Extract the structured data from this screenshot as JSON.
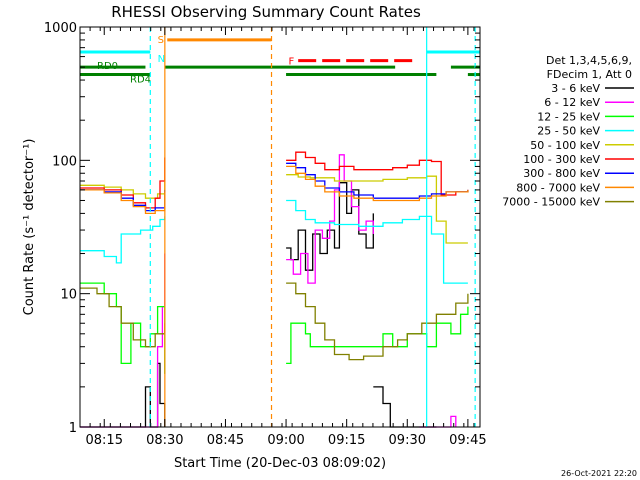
{
  "chart_data": {
    "type": "line",
    "title": "RHESSI Observing Summary Count Rates",
    "xlabel": "Start Time (20-Dec-03 08:09:02)",
    "ylabel": "Count Rate (s⁻¹ detector⁻¹)",
    "yscale": "log",
    "ylim": [
      1,
      1000
    ],
    "xlim": [
      8.15,
      9.8
    ],
    "x_ticks": [
      {
        "t": 8.25,
        "label": "08:15"
      },
      {
        "t": 8.5,
        "label": "08:30"
      },
      {
        "t": 8.75,
        "label": "08:45"
      },
      {
        "t": 9.0,
        "label": "09:00"
      },
      {
        "t": 9.25,
        "label": "09:15"
      },
      {
        "t": 9.5,
        "label": "09:30"
      },
      {
        "t": 9.75,
        "label": "09:45"
      }
    ],
    "y_ticks": [
      {
        "v": 1,
        "label": "1"
      },
      {
        "v": 10,
        "label": "10"
      },
      {
        "v": 100,
        "label": "100"
      },
      {
        "v": 1000,
        "label": "1000"
      }
    ],
    "legend_header": [
      "Det 1,3,4,5,6,9,",
      "FDecim 1, Att 0"
    ],
    "legend_position": "right",
    "timestamp": "26-Oct-2021 22:20",
    "series": [
      {
        "name": "3 - 6 keV",
        "color": "#000000",
        "segments": [
          [
            [
              8.15,
              1
            ],
            [
              8.4,
              1
            ],
            [
              8.42,
              2
            ],
            [
              8.44,
              1
            ],
            [
              8.47,
              3
            ],
            [
              8.48,
              1.5
            ],
            [
              8.5,
              1
            ]
          ],
          [
            [
              9.0,
              22
            ],
            [
              9.02,
              18
            ],
            [
              9.05,
              30
            ],
            [
              9.08,
              15
            ],
            [
              9.11,
              28
            ],
            [
              9.14,
              20
            ],
            [
              9.17,
              30
            ],
            [
              9.2,
              22
            ],
            [
              9.22,
              68
            ],
            [
              9.25,
              40
            ],
            [
              9.27,
              60
            ],
            [
              9.3,
              28
            ],
            [
              9.33,
              22
            ],
            [
              9.36,
              40
            ]
          ],
          [
            [
              9.36,
              2
            ],
            [
              9.4,
              1.5
            ],
            [
              9.43,
              1
            ],
            [
              9.5,
              1
            ],
            [
              9.62,
              1
            ]
          ]
        ]
      },
      {
        "name": "6 - 12 keV",
        "color": "#ff00ff",
        "segments": [
          [
            [
              8.15,
              1
            ],
            [
              8.44,
              1
            ],
            [
              8.47,
              4
            ],
            [
              8.49,
              8
            ],
            [
              8.5,
              20
            ]
          ],
          [
            [
              9.0,
              18
            ],
            [
              9.03,
              14
            ],
            [
              9.06,
              20
            ],
            [
              9.09,
              12
            ],
            [
              9.12,
              30
            ],
            [
              9.15,
              26
            ],
            [
              9.18,
              35
            ],
            [
              9.2,
              60
            ],
            [
              9.22,
              110
            ],
            [
              9.24,
              70
            ],
            [
              9.27,
              45
            ],
            [
              9.3,
              30
            ],
            [
              9.33,
              35
            ],
            [
              9.36,
              28
            ]
          ],
          [
            [
              9.55,
              1
            ],
            [
              9.68,
              1.2
            ],
            [
              9.7,
              1
            ]
          ]
        ]
      },
      {
        "name": "12 - 25 keV",
        "color": "#00ff00",
        "segments": [
          [
            [
              8.15,
              12
            ],
            [
              8.25,
              10
            ],
            [
              8.3,
              8
            ],
            [
              8.32,
              3
            ],
            [
              8.36,
              6
            ],
            [
              8.4,
              4
            ],
            [
              8.44,
              5
            ],
            [
              8.47,
              8
            ],
            [
              8.5,
              2.5
            ]
          ],
          [
            [
              9.0,
              3
            ],
            [
              9.02,
              6
            ],
            [
              9.08,
              5
            ],
            [
              9.1,
              4
            ],
            [
              9.3,
              4
            ],
            [
              9.4,
              5
            ],
            [
              9.44,
              4
            ],
            [
              9.5,
              5
            ],
            [
              9.58,
              4
            ],
            [
              9.62,
              6
            ],
            [
              9.68,
              5
            ],
            [
              9.72,
              7
            ],
            [
              9.75,
              8
            ]
          ]
        ]
      },
      {
        "name": "25 - 50 keV",
        "color": "#00ffff",
        "segments": [
          [
            [
              8.15,
              21
            ],
            [
              8.25,
              19
            ],
            [
              8.3,
              17
            ],
            [
              8.32,
              28
            ],
            [
              8.4,
              30
            ],
            [
              8.45,
              32
            ],
            [
              8.48,
              36
            ],
            [
              8.5,
              38
            ]
          ],
          [
            [
              9.0,
              50
            ],
            [
              9.04,
              42
            ],
            [
              9.08,
              36
            ],
            [
              9.12,
              34
            ],
            [
              9.2,
              33
            ],
            [
              9.3,
              32
            ],
            [
              9.4,
              34
            ],
            [
              9.48,
              36
            ],
            [
              9.55,
              38
            ],
            [
              9.6,
              28
            ],
            [
              9.65,
              12
            ],
            [
              9.75,
              12
            ]
          ]
        ]
      },
      {
        "name": "50 - 100 keV",
        "color": "#cccc00",
        "segments": [
          [
            [
              8.15,
              65
            ],
            [
              8.25,
              63
            ],
            [
              8.32,
              60
            ],
            [
              8.37,
              56
            ],
            [
              8.42,
              52
            ],
            [
              8.47,
              56
            ],
            [
              8.5,
              70
            ]
          ],
          [
            [
              9.0,
              78
            ],
            [
              9.05,
              75
            ],
            [
              9.1,
              74
            ],
            [
              9.2,
              70
            ],
            [
              9.3,
              70
            ],
            [
              9.4,
              72
            ],
            [
              9.5,
              74
            ],
            [
              9.58,
              76
            ],
            [
              9.62,
              35
            ],
            [
              9.66,
              24
            ],
            [
              9.75,
              24
            ]
          ]
        ]
      },
      {
        "name": "100 - 300 keV",
        "color": "#ff0000",
        "segments": [
          [
            [
              8.15,
              62
            ],
            [
              8.25,
              60
            ],
            [
              8.32,
              55
            ],
            [
              8.37,
              48
            ],
            [
              8.42,
              44
            ],
            [
              8.46,
              52
            ],
            [
              8.48,
              70
            ],
            [
              8.5,
              105
            ]
          ],
          [
            [
              9.0,
              100
            ],
            [
              9.04,
              115
            ],
            [
              9.08,
              105
            ],
            [
              9.12,
              95
            ],
            [
              9.16,
              85
            ],
            [
              9.22,
              90
            ],
            [
              9.28,
              85
            ],
            [
              9.36,
              85
            ],
            [
              9.44,
              88
            ],
            [
              9.5,
              92
            ],
            [
              9.55,
              100
            ],
            [
              9.6,
              98
            ],
            [
              9.64,
              55
            ],
            [
              9.7,
              58
            ],
            [
              9.75,
              60
            ]
          ]
        ]
      },
      {
        "name": "300 - 800 keV",
        "color": "#0000ff",
        "segments": [
          [
            [
              8.15,
              60
            ],
            [
              8.25,
              58
            ],
            [
              8.32,
              52
            ],
            [
              8.37,
              46
            ],
            [
              8.42,
              42
            ],
            [
              8.46,
              44
            ],
            [
              8.5,
              60
            ]
          ],
          [
            [
              9.0,
              95
            ],
            [
              9.04,
              88
            ],
            [
              9.08,
              78
            ],
            [
              9.12,
              70
            ],
            [
              9.16,
              62
            ],
            [
              9.22,
              58
            ],
            [
              9.28,
              55
            ],
            [
              9.36,
              52
            ],
            [
              9.44,
              52
            ],
            [
              9.5,
              52
            ],
            [
              9.55,
              54
            ],
            [
              9.6,
              56
            ],
            [
              9.66,
              58
            ],
            [
              9.75,
              60
            ]
          ]
        ]
      },
      {
        "name": "800 - 7000 keV",
        "color": "#ff8800",
        "segments": [
          [
            [
              8.15,
              60
            ],
            [
              8.25,
              57
            ],
            [
              8.32,
              50
            ],
            [
              8.37,
              45
            ],
            [
              8.42,
              40
            ],
            [
              8.46,
              42
            ],
            [
              8.5,
              58
            ]
          ],
          [
            [
              9.0,
              90
            ],
            [
              9.04,
              80
            ],
            [
              9.08,
              72
            ],
            [
              9.12,
              64
            ],
            [
              9.16,
              58
            ],
            [
              9.22,
              54
            ],
            [
              9.28,
              52
            ],
            [
              9.36,
              50
            ],
            [
              9.44,
              50
            ],
            [
              9.5,
              50
            ],
            [
              9.55,
              52
            ],
            [
              9.6,
              54
            ],
            [
              9.66,
              58
            ],
            [
              9.75,
              60
            ]
          ]
        ]
      },
      {
        "name": "7000 - 15000 keV",
        "color": "#808000",
        "segments": [
          [
            [
              8.15,
              11
            ],
            [
              8.22,
              10
            ],
            [
              8.27,
              8
            ],
            [
              8.32,
              6
            ],
            [
              8.37,
              4.5
            ],
            [
              8.42,
              4
            ],
            [
              8.46,
              5
            ],
            [
              8.5,
              6
            ]
          ],
          [
            [
              9.0,
              12
            ],
            [
              9.04,
              10
            ],
            [
              9.08,
              8
            ],
            [
              9.12,
              6
            ],
            [
              9.16,
              4.5
            ],
            [
              9.2,
              3.5
            ],
            [
              9.26,
              3.2
            ],
            [
              9.32,
              3.4
            ],
            [
              9.4,
              4
            ],
            [
              9.46,
              4.5
            ],
            [
              9.5,
              5
            ],
            [
              9.56,
              6
            ],
            [
              9.62,
              7
            ],
            [
              9.7,
              8.5
            ],
            [
              9.75,
              10
            ]
          ]
        ]
      }
    ],
    "flag_bars": [
      {
        "name": "SAA",
        "label": "S",
        "color": "#ff8800",
        "y": 800,
        "ranges": [
          [
            8.51,
            8.94
          ]
        ]
      },
      {
        "name": "Night",
        "label": "N",
        "color": "#00ffff",
        "y": 650,
        "ranges": [
          [
            8.15,
            8.44
          ],
          [
            9.58,
            9.8
          ]
        ]
      },
      {
        "name": "Flare",
        "label": "F",
        "color": "#ff0000",
        "y": 560,
        "dashed": true,
        "ranges": [
          [
            9.05,
            9.53
          ]
        ]
      },
      {
        "name": "RD0",
        "label": "RD0",
        "color": "#008000",
        "y": 500,
        "ranges": [
          [
            8.15,
            8.42
          ],
          [
            8.5,
            9.45
          ],
          [
            9.68,
            9.8
          ]
        ]
      },
      {
        "name": "RD4",
        "label": "RD4",
        "color": "#008000",
        "y": 440,
        "ranges": [
          [
            8.15,
            8.44
          ],
          [
            9.0,
            9.62
          ],
          [
            9.75,
            9.8
          ]
        ]
      }
    ],
    "vlines": [
      {
        "t": 8.44,
        "color": "#00ffff",
        "dashed": true
      },
      {
        "t": 8.5,
        "color": "#ff8800",
        "dashed": false
      },
      {
        "t": 8.94,
        "color": "#ff8800",
        "dashed": true
      },
      {
        "t": 9.58,
        "color": "#00ffff",
        "dashed": false
      },
      {
        "t": 9.78,
        "color": "#00ffff",
        "dashed": true
      }
    ]
  }
}
